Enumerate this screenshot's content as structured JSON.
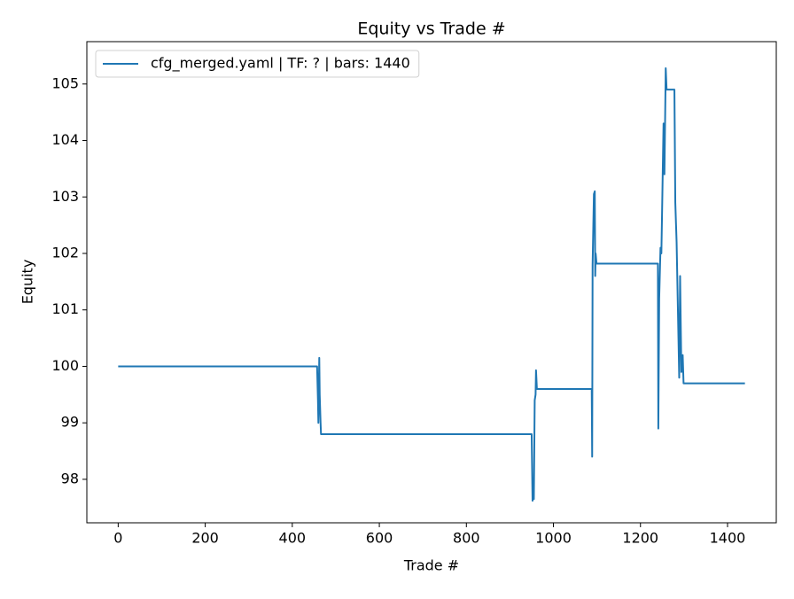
{
  "chart_data": {
    "type": "line",
    "title": "Equity vs Trade #",
    "xlabel": "Trade #",
    "ylabel": "Equity",
    "x": [
      0,
      457,
      459,
      460,
      462,
      463,
      465,
      466,
      950,
      952,
      953,
      955,
      957,
      959,
      960,
      962,
      1088,
      1089,
      1090,
      1093,
      1095,
      1096,
      1097,
      1099,
      1240,
      1241,
      1243,
      1246,
      1248,
      1250,
      1253,
      1255,
      1256,
      1258,
      1260,
      1278,
      1280,
      1283,
      1286,
      1289,
      1291,
      1294,
      1297,
      1299,
      1440
    ],
    "series": [
      {
        "name": "cfg_merged.yaml | TF: ? | bars: 1440",
        "color": "#1f77b4",
        "values": [
          100,
          100,
          99.4,
          99.0,
          100.15,
          99.5,
          99.0,
          98.8,
          98.8,
          97.62,
          97.8,
          97.65,
          99.4,
          99.5,
          99.93,
          99.6,
          99.6,
          98.4,
          101.8,
          103.05,
          103.1,
          101.6,
          102.0,
          101.82,
          101.82,
          98.9,
          101.2,
          102.1,
          102.0,
          102.9,
          104.3,
          103.4,
          104.0,
          105.28,
          104.9,
          104.9,
          102.9,
          102.2,
          101.0,
          99.8,
          101.6,
          99.9,
          100.2,
          99.7,
          99.7
        ]
      }
    ],
    "xlim": [
      -72,
      1512
    ],
    "ylim": [
      97.23,
      105.75
    ],
    "xticks": [
      0,
      200,
      400,
      600,
      800,
      1000,
      1200,
      1400
    ],
    "yticks": [
      98,
      99,
      100,
      101,
      102,
      103,
      104,
      105
    ],
    "legend": "upper left"
  }
}
